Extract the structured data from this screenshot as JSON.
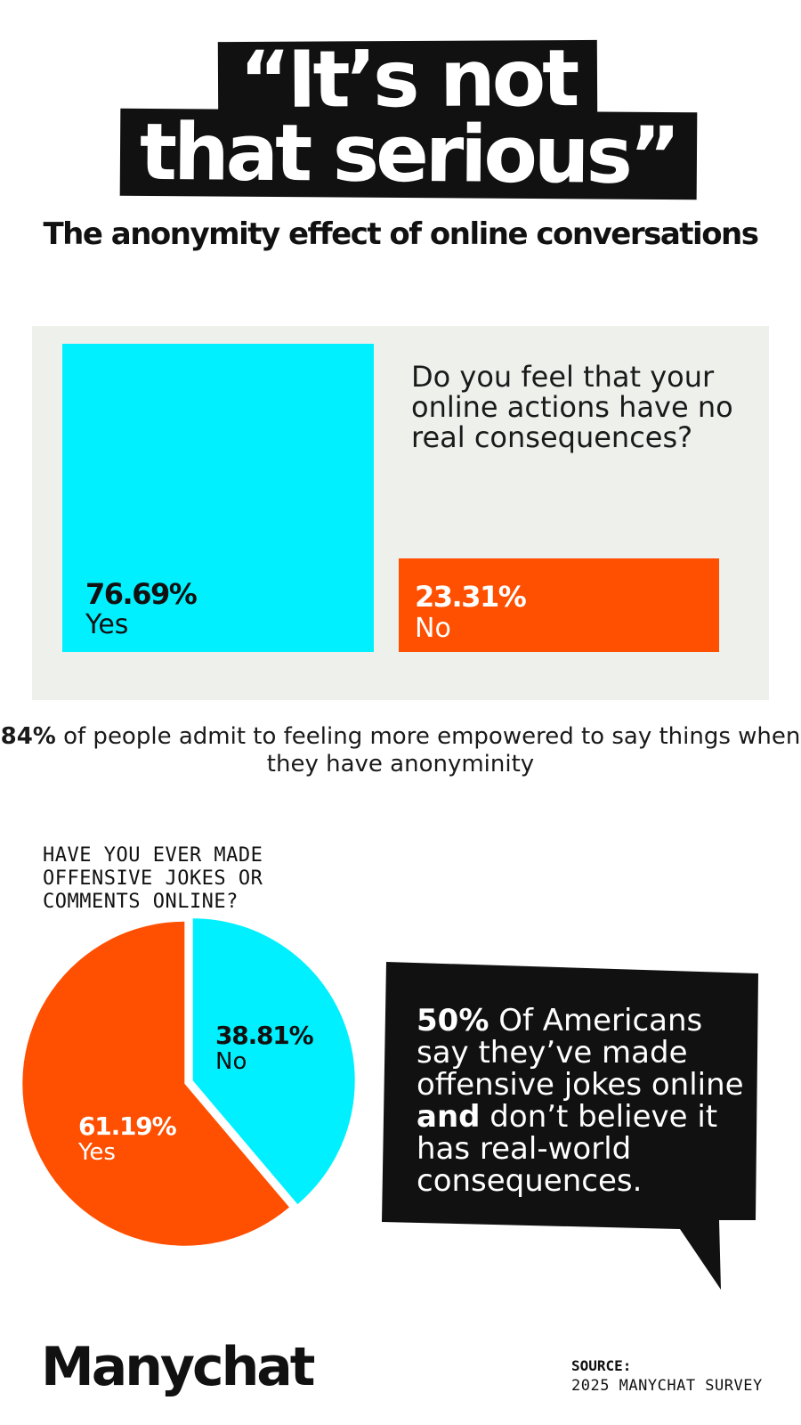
{
  "title": {
    "line1": "“It’s not",
    "line2": "that serious”"
  },
  "subtitle": "The anonymity effect of online conversations",
  "colors": {
    "cyan": "#00f0ff",
    "orange": "#ff4f00",
    "black": "#111111",
    "panel": "#eef0ec"
  },
  "stat": {
    "highlight": "84%",
    "text": " of people admit to feeling more empowered to say things when they have anonyminity"
  },
  "bubble": {
    "highlight": "50%",
    "text_part1": " Of Americans say they’ve made offensive jokes online ",
    "emphasis": "and",
    "text_part2": " don’t believe it has real-world consequences."
  },
  "logo": "Manychat",
  "source": {
    "label": "SOURCE:",
    "value": "2025 MANYCHAT SURVEY"
  },
  "chart_data": [
    {
      "type": "bar",
      "question": "Do you feel that your online actions have no real consequences?",
      "categories": [
        "Yes",
        "No"
      ],
      "values": [
        76.69,
        23.31
      ],
      "value_labels": [
        "76.69%",
        "23.31%"
      ],
      "colors": [
        "#00f0ff",
        "#ff4f00"
      ]
    },
    {
      "type": "pie",
      "question": "HAVE YOU EVER MADE OFFENSIVE JOKES OR COMMENTS ONLINE?",
      "categories": [
        "No",
        "Yes"
      ],
      "values": [
        38.81,
        61.19
      ],
      "value_labels": [
        "38.81%",
        "61.19%"
      ],
      "colors": [
        "#00f0ff",
        "#ff4f00"
      ]
    }
  ]
}
